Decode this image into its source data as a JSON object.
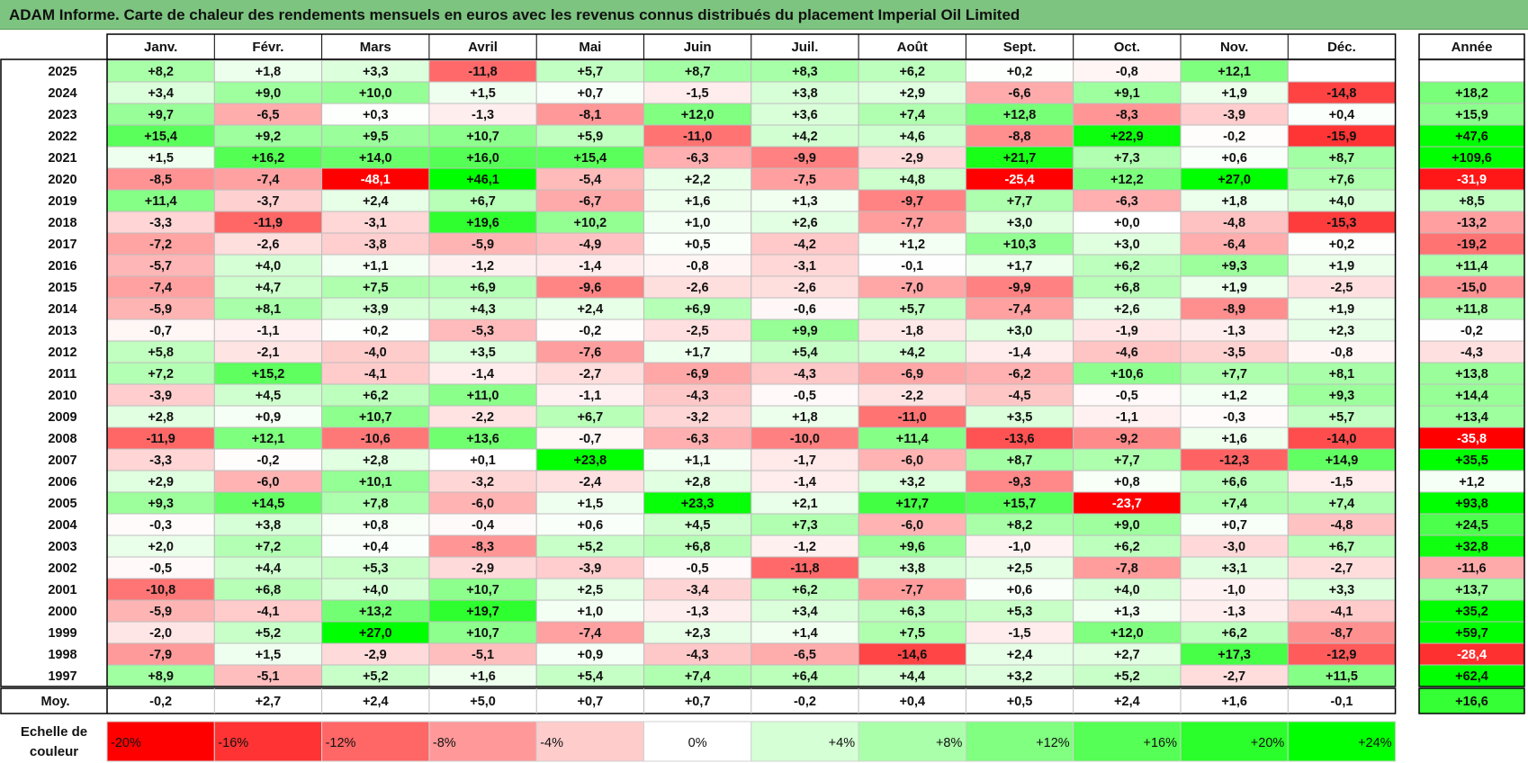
{
  "title": "ADAM Informe. Carte de chaleur des rendements mensuels en euros avec les revenus connus distribués du placement Imperial Oil Limited",
  "colors": {
    "title_bg": "#7cc47f",
    "max_red": "#ff0000",
    "max_green": "#00ff00",
    "neutral": "#ffffff"
  },
  "chart_data": {
    "type": "heatmap",
    "title": "ADAM Informe. Carte de chaleur des rendements mensuels en euros avec les revenus connus distribués du placement Imperial Oil Limited",
    "months": [
      "Janv.",
      "Févr.",
      "Mars",
      "Avril",
      "Mai",
      "Juin",
      "Juil.",
      "Août",
      "Sept.",
      "Oct.",
      "Nov.",
      "Déc."
    ],
    "year_header": "Année",
    "rows": [
      {
        "year": "2025",
        "values": [
          "+8,2",
          "+1,8",
          "+3,3",
          "-11,8",
          "+5,7",
          "+8,7",
          "+8,3",
          "+6,2",
          "+0,2",
          "-0,8",
          "+12,1",
          ""
        ],
        "annual": ""
      },
      {
        "year": "2024",
        "values": [
          "+3,4",
          "+9,0",
          "+10,0",
          "+1,5",
          "+0,7",
          "-1,5",
          "+3,8",
          "+2,9",
          "-6,6",
          "+9,1",
          "+1,9",
          "-14,8"
        ],
        "annual": "+18,2"
      },
      {
        "year": "2023",
        "values": [
          "+9,7",
          "-6,5",
          "+0,3",
          "-1,3",
          "-8,1",
          "+12,0",
          "+3,6",
          "+7,4",
          "+12,8",
          "-8,3",
          "-3,9",
          "+0,4"
        ],
        "annual": "+15,9"
      },
      {
        "year": "2022",
        "values": [
          "+15,4",
          "+9,2",
          "+9,5",
          "+10,7",
          "+5,9",
          "-11,0",
          "+4,2",
          "+4,6",
          "-8,8",
          "+22,9",
          "-0,2",
          "-15,9"
        ],
        "annual": "+47,6"
      },
      {
        "year": "2021",
        "values": [
          "+1,5",
          "+16,2",
          "+14,0",
          "+16,0",
          "+15,4",
          "-6,3",
          "-9,9",
          "-2,9",
          "+21,7",
          "+7,3",
          "+0,6",
          "+8,7"
        ],
        "annual": "+109,6"
      },
      {
        "year": "2020",
        "values": [
          "-8,5",
          "-7,4",
          "-48,1",
          "+46,1",
          "-5,4",
          "+2,2",
          "-7,5",
          "+4,8",
          "-25,4",
          "+12,2",
          "+27,0",
          "+7,6"
        ],
        "annual": "-31,9"
      },
      {
        "year": "2019",
        "values": [
          "+11,4",
          "-3,7",
          "+2,4",
          "+6,7",
          "-6,7",
          "+1,6",
          "+1,3",
          "-9,7",
          "+7,7",
          "-6,3",
          "+1,8",
          "+4,0"
        ],
        "annual": "+8,5"
      },
      {
        "year": "2018",
        "values": [
          "-3,3",
          "-11,9",
          "-3,1",
          "+19,6",
          "+10,2",
          "+1,0",
          "+2,6",
          "-7,7",
          "+3,0",
          "+0,0",
          "-4,8",
          "-15,3"
        ],
        "annual": "-13,2"
      },
      {
        "year": "2017",
        "values": [
          "-7,2",
          "-2,6",
          "-3,8",
          "-5,9",
          "-4,9",
          "+0,5",
          "-4,2",
          "+1,2",
          "+10,3",
          "+3,0",
          "-6,4",
          "+0,2"
        ],
        "annual": "-19,2"
      },
      {
        "year": "2016",
        "values": [
          "-5,7",
          "+4,0",
          "+1,1",
          "-1,2",
          "-1,4",
          "-0,8",
          "-3,1",
          "-0,1",
          "+1,7",
          "+6,2",
          "+9,3",
          "+1,9"
        ],
        "annual": "+11,4"
      },
      {
        "year": "2015",
        "values": [
          "-7,4",
          "+4,7",
          "+7,5",
          "+6,9",
          "-9,6",
          "-2,6",
          "-2,6",
          "-7,0",
          "-9,9",
          "+6,8",
          "+1,9",
          "-2,5"
        ],
        "annual": "-15,0"
      },
      {
        "year": "2014",
        "values": [
          "-5,9",
          "+8,1",
          "+3,9",
          "+4,3",
          "+2,4",
          "+6,9",
          "-0,6",
          "+5,7",
          "-7,4",
          "+2,6",
          "-8,9",
          "+1,9"
        ],
        "annual": "+11,8"
      },
      {
        "year": "2013",
        "values": [
          "-0,7",
          "-1,1",
          "+0,2",
          "-5,3",
          "-0,2",
          "-2,5",
          "+9,9",
          "-1,8",
          "+3,0",
          "-1,9",
          "-1,3",
          "+2,3"
        ],
        "annual": "-0,2"
      },
      {
        "year": "2012",
        "values": [
          "+5,8",
          "-2,1",
          "-4,0",
          "+3,5",
          "-7,6",
          "+1,7",
          "+5,4",
          "+4,2",
          "-1,4",
          "-4,6",
          "-3,5",
          "-0,8"
        ],
        "annual": "-4,3"
      },
      {
        "year": "2011",
        "values": [
          "+7,2",
          "+15,2",
          "-4,1",
          "-1,4",
          "-2,7",
          "-6,9",
          "-4,3",
          "-6,9",
          "-6,2",
          "+10,6",
          "+7,7",
          "+8,1"
        ],
        "annual": "+13,8"
      },
      {
        "year": "2010",
        "values": [
          "-3,9",
          "+4,5",
          "+6,2",
          "+11,0",
          "-1,1",
          "-4,3",
          "-0,5",
          "-2,2",
          "-4,5",
          "-0,5",
          "+1,2",
          "+9,3"
        ],
        "annual": "+14,4"
      },
      {
        "year": "2009",
        "values": [
          "+2,8",
          "+0,9",
          "+10,7",
          "-2,2",
          "+6,7",
          "-3,2",
          "+1,8",
          "-11,0",
          "+3,5",
          "-1,1",
          "-0,3",
          "+5,7"
        ],
        "annual": "+13,4"
      },
      {
        "year": "2008",
        "values": [
          "-11,9",
          "+12,1",
          "-10,6",
          "+13,6",
          "-0,7",
          "-6,3",
          "-10,0",
          "+11,4",
          "-13,6",
          "-9,2",
          "+1,6",
          "-14,0"
        ],
        "annual": "-35,8"
      },
      {
        "year": "2007",
        "values": [
          "-3,3",
          "-0,2",
          "+2,8",
          "+0,1",
          "+23,8",
          "+1,1",
          "-1,7",
          "-6,0",
          "+8,7",
          "+7,7",
          "-12,3",
          "+14,9"
        ],
        "annual": "+35,5"
      },
      {
        "year": "2006",
        "values": [
          "+2,9",
          "-6,0",
          "+10,1",
          "-3,2",
          "-2,4",
          "+2,8",
          "-1,4",
          "+3,2",
          "-9,3",
          "+0,8",
          "+6,6",
          "-1,5"
        ],
        "annual": "+1,2"
      },
      {
        "year": "2005",
        "values": [
          "+9,3",
          "+14,5",
          "+7,8",
          "-6,0",
          "+1,5",
          "+23,3",
          "+2,1",
          "+17,7",
          "+15,7",
          "-23,7",
          "+7,4",
          "+7,4"
        ],
        "annual": "+93,8"
      },
      {
        "year": "2004",
        "values": [
          "-0,3",
          "+3,8",
          "+0,8",
          "-0,4",
          "+0,6",
          "+4,5",
          "+7,3",
          "-6,0",
          "+8,2",
          "+9,0",
          "+0,7",
          "-4,8"
        ],
        "annual": "+24,5"
      },
      {
        "year": "2003",
        "values": [
          "+2,0",
          "+7,2",
          "+0,4",
          "-8,3",
          "+5,2",
          "+6,8",
          "-1,2",
          "+9,6",
          "-1,0",
          "+6,2",
          "-3,0",
          "+6,7"
        ],
        "annual": "+32,8"
      },
      {
        "year": "2002",
        "values": [
          "-0,5",
          "+4,4",
          "+5,3",
          "-2,9",
          "-3,9",
          "-0,5",
          "-11,8",
          "+3,8",
          "+2,5",
          "-7,8",
          "+3,1",
          "-2,7"
        ],
        "annual": "-11,6"
      },
      {
        "year": "2001",
        "values": [
          "-10,8",
          "+6,8",
          "+4,0",
          "+10,7",
          "+2,5",
          "-3,4",
          "+6,2",
          "-7,7",
          "+0,6",
          "+4,0",
          "-1,0",
          "+3,3"
        ],
        "annual": "+13,7"
      },
      {
        "year": "2000",
        "values": [
          "-5,9",
          "-4,1",
          "+13,2",
          "+19,7",
          "+1,0",
          "-1,3",
          "+3,4",
          "+6,3",
          "+5,3",
          "+1,3",
          "-1,3",
          "-4,1"
        ],
        "annual": "+35,2"
      },
      {
        "year": "1999",
        "values": [
          "-2,0",
          "+5,2",
          "+27,0",
          "+10,7",
          "-7,4",
          "+2,3",
          "+1,4",
          "+7,5",
          "-1,5",
          "+12,0",
          "+6,2",
          "-8,7"
        ],
        "annual": "+59,7"
      },
      {
        "year": "1998",
        "values": [
          "-7,9",
          "+1,5",
          "-2,9",
          "-5,1",
          "+0,9",
          "-4,3",
          "-6,5",
          "-14,6",
          "+2,4",
          "+2,7",
          "+17,3",
          "-12,9"
        ],
        "annual": "-28,4"
      },
      {
        "year": "1997",
        "values": [
          "+8,9",
          "-5,1",
          "+5,2",
          "+1,6",
          "+5,4",
          "+7,4",
          "+6,4",
          "+4,4",
          "+3,2",
          "+5,2",
          "-2,7",
          "+11,5"
        ],
        "annual": "+62,4"
      }
    ],
    "average": {
      "label": "Moy.",
      "values": [
        "-0,2",
        "+2,7",
        "+2,4",
        "+5,0",
        "+0,7",
        "+0,7",
        "-0,2",
        "+0,4",
        "+0,5",
        "+2,4",
        "+1,6",
        "-0,1"
      ],
      "annual": "+16,6"
    },
    "legend": {
      "label_line1": "Echelle de",
      "label_line2": "couleur",
      "steps": [
        {
          "label": "-20%",
          "value": -20
        },
        {
          "label": "-16%",
          "value": -16
        },
        {
          "label": "-12%",
          "value": -12
        },
        {
          "label": "-8%",
          "value": -8
        },
        {
          "label": "-4%",
          "value": -4
        },
        {
          "label": "0%",
          "value": 0
        },
        {
          "label": "+4%",
          "value": 4
        },
        {
          "label": "+8%",
          "value": 8
        },
        {
          "label": "+12%",
          "value": 12
        },
        {
          "label": "+16%",
          "value": 16
        },
        {
          "label": "+20%",
          "value": 20
        },
        {
          "label": "+24%",
          "value": 24
        }
      ]
    },
    "monthly_color_scale": {
      "red_at": -20,
      "green_at": 24
    },
    "annual_color_scale": {
      "red_at": -35,
      "green_at": 35
    }
  }
}
